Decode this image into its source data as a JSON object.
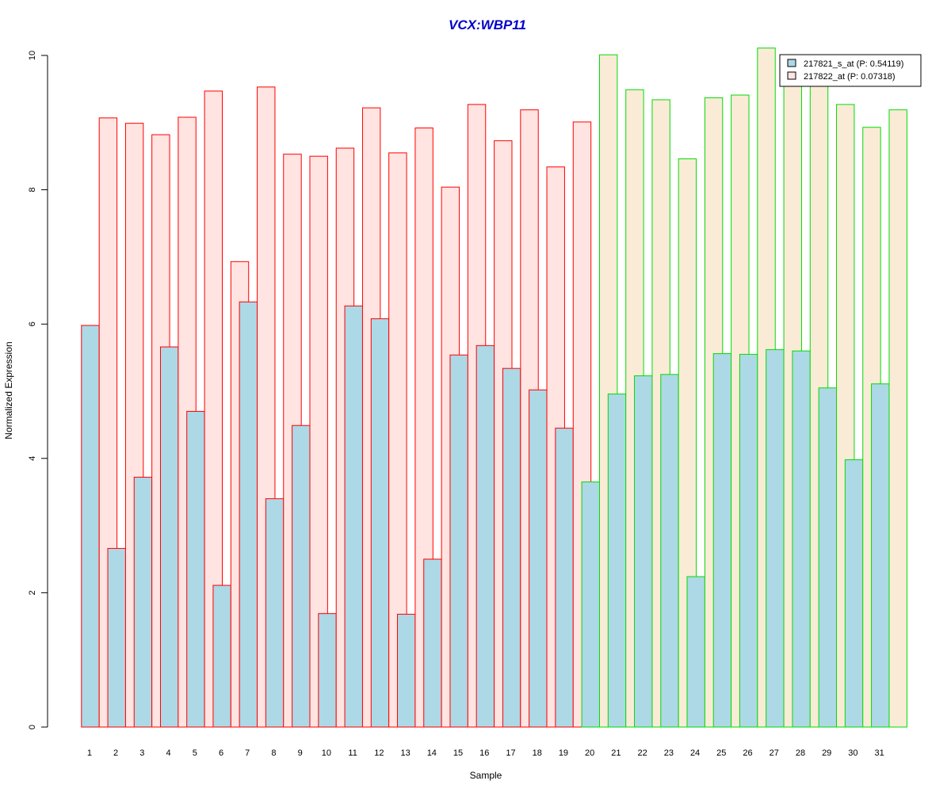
{
  "chart_data": {
    "type": "bar",
    "title": "VCX:WBP11",
    "xlabel": "Sample",
    "ylabel": "Normalized Expression",
    "ylim": [
      0,
      10
    ],
    "yticks": [
      "0",
      "2",
      "4",
      "6",
      "8",
      "10"
    ],
    "categories": [
      "1",
      "2",
      "3",
      "4",
      "5",
      "6",
      "7",
      "8",
      "9",
      "10",
      "11",
      "12",
      "13",
      "14",
      "15",
      "16",
      "17",
      "18",
      "19",
      "20",
      "21",
      "22",
      "23",
      "24",
      "25",
      "26",
      "27",
      "28",
      "29",
      "30",
      "31"
    ],
    "groups": [
      {
        "samples": [
          1,
          19
        ],
        "border_color": "#FF0000"
      },
      {
        "samples": [
          20,
          31
        ],
        "border_color": "#00DD00"
      }
    ],
    "series": [
      {
        "name": "217821_s_at (P: 0.54119)",
        "fill": "#ADD8E6",
        "values": [
          5.98,
          2.66,
          3.72,
          5.66,
          4.7,
          2.11,
          6.33,
          3.4,
          4.49,
          1.69,
          6.27,
          6.08,
          1.68,
          2.5,
          5.54,
          5.68,
          5.34,
          5.02,
          4.45,
          3.65,
          4.96,
          5.23,
          5.25,
          2.24,
          5.56,
          5.55,
          5.62,
          5.6,
          5.05,
          3.98,
          5.11
        ]
      },
      {
        "name": "217822_at (P: 0.07318)",
        "fill": "#FFE4E1",
        "fill_alt": "#FAEBD7",
        "values": [
          9.07,
          8.99,
          8.82,
          9.08,
          9.47,
          6.93,
          9.53,
          8.53,
          8.5,
          8.62,
          9.22,
          8.55,
          8.92,
          8.04,
          9.27,
          8.73,
          9.19,
          8.34,
          9.01,
          10.01,
          9.49,
          9.34,
          8.46,
          9.37,
          9.41,
          10.11,
          9.55,
          9.58,
          9.27,
          8.93,
          9.19
        ]
      }
    ],
    "legend": {
      "position": "top-right",
      "items": [
        {
          "label": "217821_s_at (P: 0.54119)",
          "fill": "#ADD8E6"
        },
        {
          "label": "217822_at (P: 0.07318)",
          "fill": "#FFE4E1"
        }
      ]
    }
  }
}
